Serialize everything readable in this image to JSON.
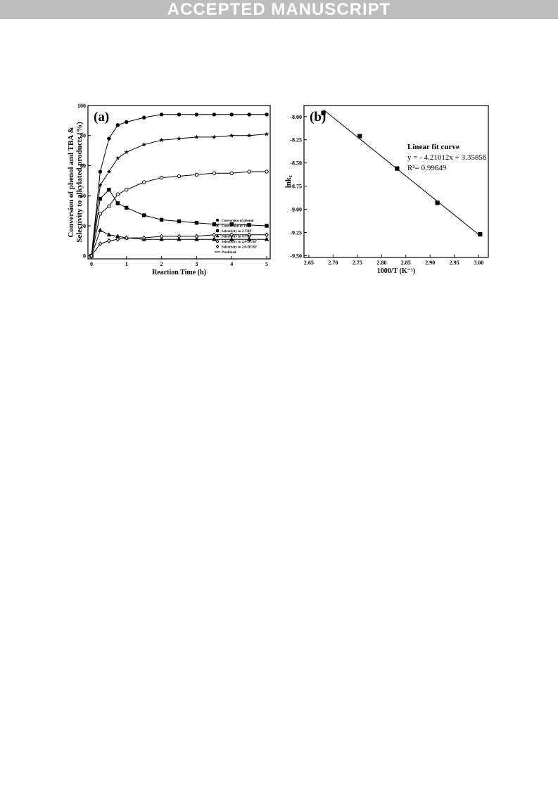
{
  "header": {
    "banner": "ACCEPTED MANUSCRIPT"
  },
  "chart_data": [
    {
      "type": "scatter",
      "panel": "(a)",
      "ylabel": [
        "Conversion of phenol and TBA &",
        "Selectivity to alkylated products (%)"
      ],
      "xlabel": "Reaction Time (h)",
      "x": [
        0,
        0.25,
        0.5,
        0.75,
        1,
        1.5,
        2,
        2.5,
        3,
        3.5,
        4,
        4.5,
        5
      ],
      "series": [
        {
          "name": "Conversion of phenol",
          "marker": "circle",
          "color": "#000000",
          "values": [
            0,
            56,
            78,
            87,
            89,
            92,
            94,
            94,
            94,
            94,
            94,
            94,
            94
          ]
        },
        {
          "name": "Conversion of TBA",
          "marker": "star",
          "color": "#000000",
          "values": [
            0,
            47,
            56,
            65,
            69,
            74,
            77,
            78,
            79,
            79,
            80,
            80,
            81
          ]
        },
        {
          "name": "Selectivity to 2-TBP",
          "marker": "square",
          "color": "#000000",
          "values": [
            0,
            38,
            44,
            35,
            32,
            27,
            24,
            23,
            22,
            21,
            21,
            20.5,
            20
          ]
        },
        {
          "name": "Selectivity to 4-TBP",
          "marker": "triangle",
          "color": "#000000",
          "values": [
            0,
            17,
            14,
            13,
            12,
            11,
            11,
            11,
            11,
            11,
            11,
            11,
            11
          ]
        },
        {
          "name": "Selectivity to 2,4-DTBP",
          "marker": "open-circle",
          "color": "#000000",
          "values": [
            0,
            28,
            33,
            41,
            44,
            49,
            52,
            53,
            54,
            55,
            55,
            56,
            56
          ]
        },
        {
          "name": "Selectivity to 2,6-DTBP",
          "marker": "open-diamond",
          "color": "#000000",
          "values": [
            0,
            8,
            10,
            11,
            12,
            12,
            13,
            13,
            13,
            14,
            14,
            14,
            14
          ]
        }
      ],
      "line_legend": "Predicted",
      "xlim": [
        -0.1,
        5.1
      ],
      "ylim": [
        -2,
        100
      ],
      "xticks": [
        0,
        1,
        2,
        3,
        4,
        5
      ],
      "yticks": [
        0,
        20,
        40,
        60,
        80,
        100
      ],
      "legend": "lower right"
    },
    {
      "type": "scatter",
      "panel": "(b)",
      "ylabel": "lnk₁",
      "xlabel": "1000/T (K⁻¹)",
      "x": [
        2.68,
        2.755,
        2.832,
        2.915,
        3.003
      ],
      "values": [
        -7.96,
        -8.21,
        -8.56,
        -8.93,
        -9.27
      ],
      "color": "#000000",
      "fit": {
        "slope": -4.21012,
        "intercept": 3.35856
      },
      "annotations": [
        "Linear fit curve",
        "y = - 4.21012x + 3.35856",
        "R²= 0.99649"
      ],
      "xlim": [
        2.64,
        3.02
      ],
      "ylim": [
        -9.52,
        -7.88
      ],
      "xticks": [
        2.65,
        {
          "value": 2.7,
          "label": "2.70"
        },
        2.75,
        {
          "value": 2.8,
          "label": "2.80"
        },
        2.85,
        {
          "value": 2.9,
          "label": "2.90"
        },
        2.95,
        {
          "value": 3,
          "label": "3.00"
        }
      ],
      "yticks": [
        {
          "value": -8,
          "label": "-8.00"
        },
        -8.25,
        {
          "value": -8.5,
          "label": "-8.50"
        },
        -8.75,
        {
          "value": -9,
          "label": "-9.00"
        },
        -9.25,
        {
          "value": -9.5,
          "label": "-9.50"
        }
      ]
    }
  ]
}
